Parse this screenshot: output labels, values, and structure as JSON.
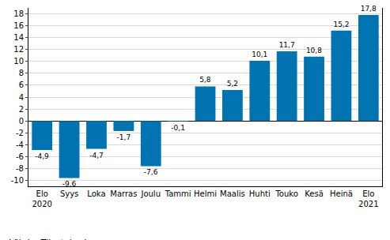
{
  "chart_data": {
    "type": "bar",
    "categories": [
      "Elo\n2020",
      "Syys",
      "Loka",
      "Marras",
      "Joulu",
      "Tammi",
      "Helmi",
      "Maalis",
      "Huhti",
      "Touko",
      "Kesä",
      "Heinä",
      "Elo\n2021"
    ],
    "values": [
      -4.9,
      -9.6,
      -4.7,
      -1.7,
      -7.6,
      -0.1,
      5.8,
      5.2,
      10.1,
      11.7,
      10.8,
      15.2,
      17.8
    ],
    "value_labels": [
      "-4,9",
      "-9,6",
      "-4,7",
      "-1,7",
      "-7,6",
      "-0,1",
      "5,8",
      "5,2",
      "10,1",
      "11,7",
      "10,8",
      "15,2",
      "17,8"
    ],
    "data_labels": true,
    "color": "#0073b0",
    "ylim": [
      -11,
      19
    ],
    "yticks": [
      -10,
      -8,
      -6,
      -4,
      -2,
      0,
      2,
      4,
      6,
      8,
      10,
      12,
      14,
      16,
      18
    ],
    "grid": true,
    "source": "Lähde: Tilastokeskus"
  }
}
